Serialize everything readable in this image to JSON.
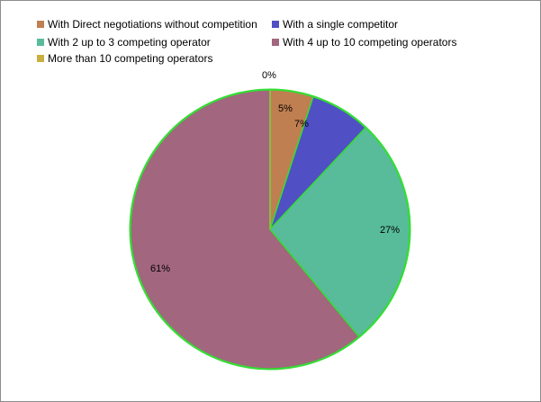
{
  "chart_data": {
    "type": "pie",
    "title": "",
    "legend_position": "top",
    "start_angle_deg": 0,
    "direction": "clockwise",
    "slices": [
      {
        "name": "With Direct negotiations without competition",
        "value": 5,
        "label": "5%",
        "color": "#c07f50"
      },
      {
        "name": "With a single competitor",
        "value": 7,
        "label": "7%",
        "color": "#5050c4"
      },
      {
        "name": "With 2 up to 3 competing operator",
        "value": 27,
        "label": "27%",
        "color": "#58bb9a"
      },
      {
        "name": "With 4 up to 10 competing operators",
        "value": 61,
        "label": "61%",
        "color": "#a2667e"
      },
      {
        "name": "More than 10 competing operators",
        "value": 0,
        "label": "0%",
        "color": "#c8b040"
      }
    ],
    "slice_outline_color": "#33dd33"
  }
}
